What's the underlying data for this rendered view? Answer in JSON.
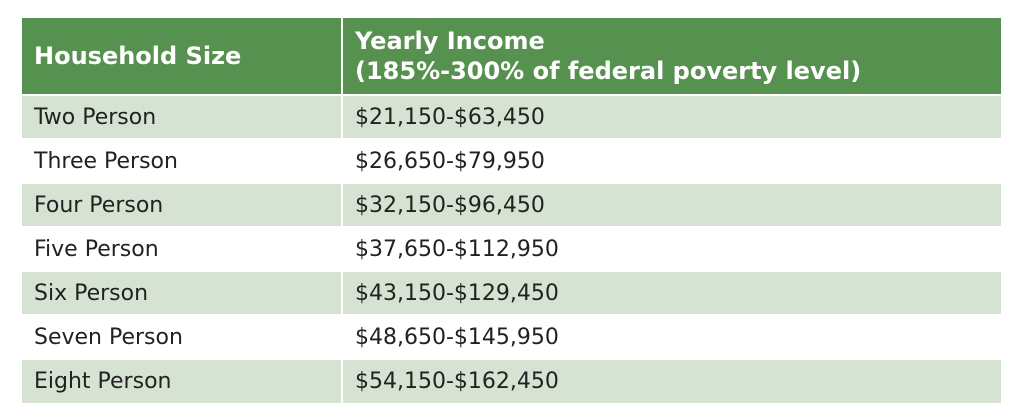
{
  "table": {
    "headers": {
      "col1": "Household Size",
      "col2_line1": "Yearly Income",
      "col2_line2": "(185%-300% of federal poverty level)"
    },
    "rows": [
      {
        "size": "Two Person",
        "income": "$21,150-$63,450"
      },
      {
        "size": "Three Person",
        "income": "$26,650-$79,950"
      },
      {
        "size": "Four Person",
        "income": "$32,150-$96,450"
      },
      {
        "size": "Five Person",
        "income": "$37,650-$112,950"
      },
      {
        "size": "Six Person",
        "income": "$43,150-$129,450"
      },
      {
        "size": "Seven Person",
        "income": "$48,650-$145,950"
      },
      {
        "size": "Eight Person",
        "income": "$54,150-$162,450"
      }
    ],
    "colors": {
      "header_bg": "#579150",
      "shaded_row_bg": "#d7e3d2",
      "plain_row_bg": "#ffffff"
    }
  }
}
